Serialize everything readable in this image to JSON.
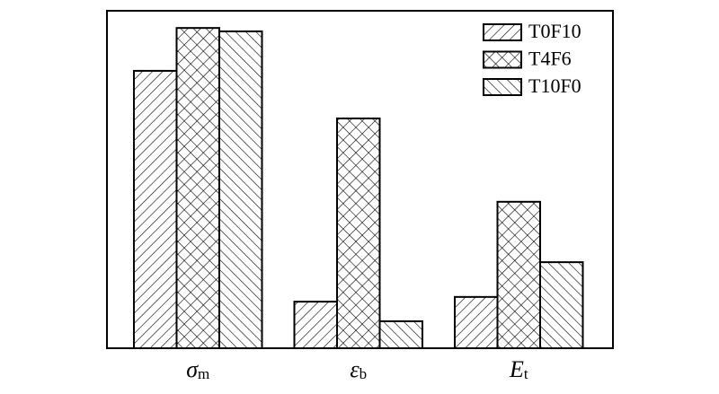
{
  "chart_data": {
    "type": "bar",
    "categories": [
      {
        "symbol": "σ",
        "subscript": "m"
      },
      {
        "symbol": "ε",
        "subscript": "b"
      },
      {
        "symbol": "E",
        "subscript": "t"
      }
    ],
    "series": [
      {
        "name": "T0F10",
        "color": "#000000",
        "pattern": "forward-hatch",
        "values": [
          82.2,
          13.8,
          15.2
        ]
      },
      {
        "name": "T4F6",
        "color": "#000000",
        "pattern": "cross-hatch",
        "values": [
          94.9,
          68.1,
          43.4
        ]
      },
      {
        "name": "T10F0",
        "color": "#000000",
        "pattern": "back-hatch",
        "values": [
          93.9,
          8.0,
          25.5
        ]
      }
    ],
    "ylim": [
      0,
      100
    ],
    "legend": "upper-right"
  }
}
